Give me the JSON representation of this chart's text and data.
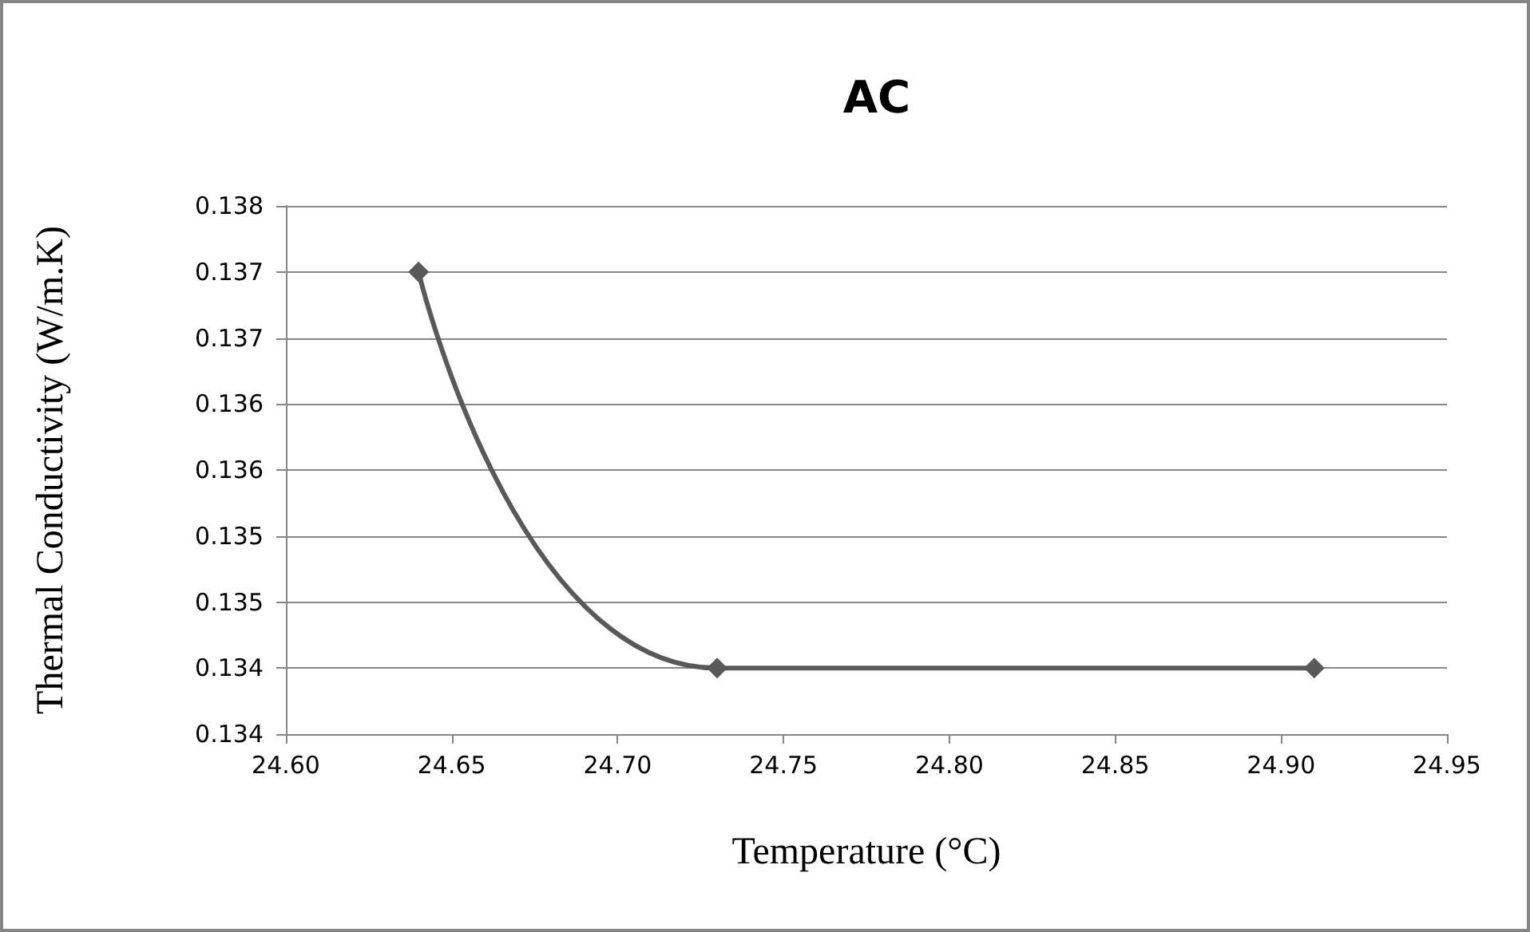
{
  "chart_data": {
    "type": "line",
    "title": "AC",
    "xlabel": "Temperature (°C)",
    "ylabel": "Thermal Conductivity (W/m.K)",
    "x": [
      24.64,
      24.73,
      24.91
    ],
    "series": [
      {
        "color": "#595959",
        "values": [
          0.1375,
          0.1345,
          0.1345
        ]
      }
    ],
    "xlim": [
      24.6,
      24.95
    ],
    "xticks": [
      {
        "value": 24.6,
        "label": "24.60"
      },
      {
        "value": 24.65,
        "label": "24.65"
      },
      {
        "value": 24.7,
        "label": "24.70"
      },
      {
        "value": 24.75,
        "label": "24.75"
      },
      {
        "value": 24.8,
        "label": "24.80"
      },
      {
        "value": 24.85,
        "label": "24.85"
      },
      {
        "value": 24.9,
        "label": "24.90"
      },
      {
        "value": 24.95,
        "label": "24.95"
      }
    ],
    "ylim": [
      0.134,
      0.138
    ],
    "yticks": [
      {
        "value": 0.134,
        "label": "0.134"
      },
      {
        "value": 0.1345,
        "label": "0.134"
      },
      {
        "value": 0.135,
        "label": "0.135"
      },
      {
        "value": 0.1355,
        "label": "0.135"
      },
      {
        "value": 0.136,
        "label": "0.136"
      },
      {
        "value": 0.1365,
        "label": "0.136"
      },
      {
        "value": 0.137,
        "label": "0.137"
      },
      {
        "value": 0.1375,
        "label": "0.137"
      },
      {
        "value": 0.138,
        "label": "0.138"
      }
    ],
    "grid": "y",
    "marker": "diamond",
    "line_style": "solid"
  }
}
